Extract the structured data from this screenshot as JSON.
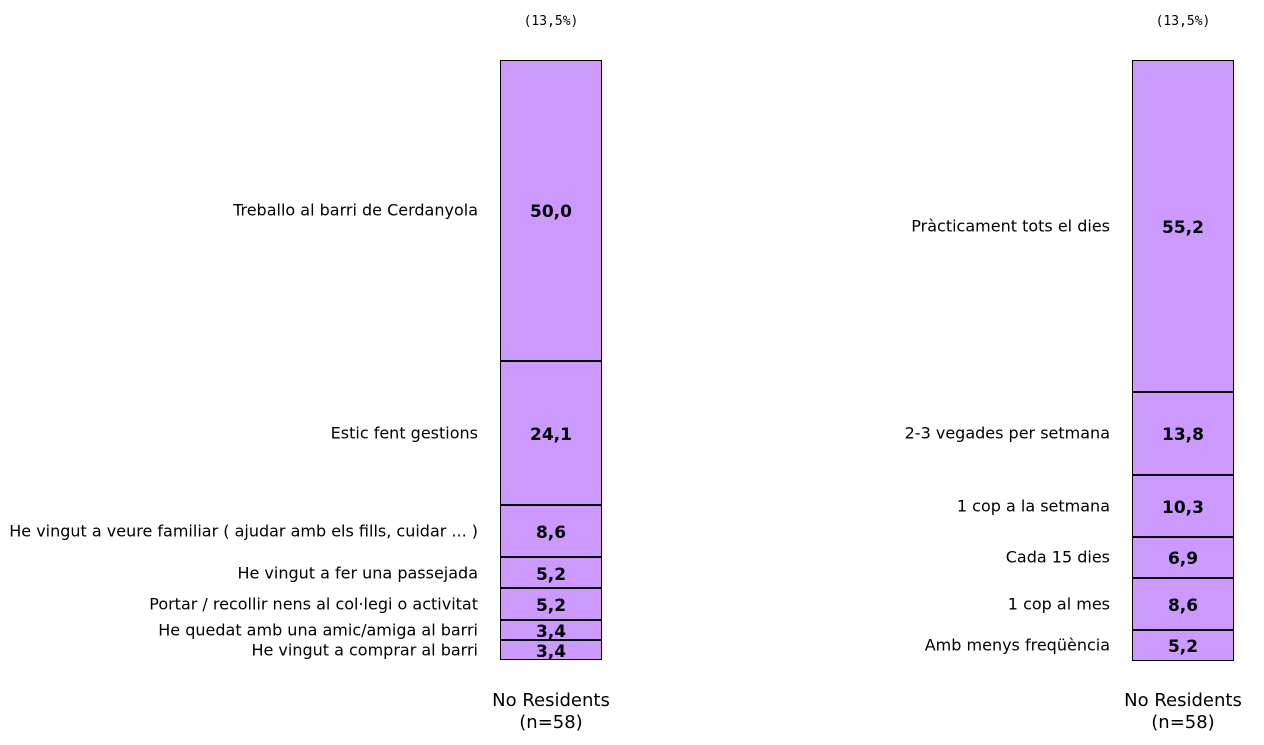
{
  "chart_data": [
    {
      "type": "stacked_bar",
      "header": "(13,5%)",
      "categories": [
        "No Residents (n=58)"
      ],
      "ylim": [
        0,
        100
      ],
      "color": "#cc99ff",
      "series": [
        {
          "name": "Treballo al barri de Cerdanyola",
          "values": [
            50.0
          ],
          "value_labels": [
            "50,0"
          ]
        },
        {
          "name": "Estic fent gestions",
          "values": [
            24.1
          ],
          "value_labels": [
            "24,1"
          ]
        },
        {
          "name": "He vingut a veure familiar ( ajudar amb els fills, cuidar ... )",
          "values": [
            8.6
          ],
          "value_labels": [
            "8,6"
          ]
        },
        {
          "name": "He vingut a fer una passejada",
          "values": [
            5.2
          ],
          "value_labels": [
            "5,2"
          ]
        },
        {
          "name": "Portar / recollir nens al col·legi o activitat",
          "values": [
            5.2
          ],
          "value_labels": [
            "5,2"
          ]
        },
        {
          "name": "He quedat amb una amic/amiga al barri",
          "values": [
            3.4
          ],
          "value_labels": [
            "3,4"
          ]
        },
        {
          "name": "He vingut a comprar al barri",
          "values": [
            3.4
          ],
          "value_labels": [
            "3,4"
          ]
        }
      ]
    },
    {
      "type": "stacked_bar",
      "header": "(13,5%)",
      "categories": [
        "No Residents (n=58)"
      ],
      "ylim": [
        0,
        100
      ],
      "color": "#cc99ff",
      "series": [
        {
          "name": "Pràcticament tots el dies",
          "values": [
            55.2
          ],
          "value_labels": [
            "55,2"
          ]
        },
        {
          "name": "2-3 vegades per setmana",
          "values": [
            13.8
          ],
          "value_labels": [
            "13,8"
          ]
        },
        {
          "name": "1 cop a la setmana",
          "values": [
            10.3
          ],
          "value_labels": [
            "10,3"
          ]
        },
        {
          "name": "Cada 15 dies",
          "values": [
            6.9
          ],
          "value_labels": [
            "6,9"
          ]
        },
        {
          "name": "1 cop al mes",
          "values": [
            8.6
          ],
          "value_labels": [
            "8,6"
          ]
        },
        {
          "name": "Amb menys freqüència",
          "values": [
            5.2
          ],
          "value_labels": [
            "5,2"
          ]
        }
      ]
    }
  ]
}
